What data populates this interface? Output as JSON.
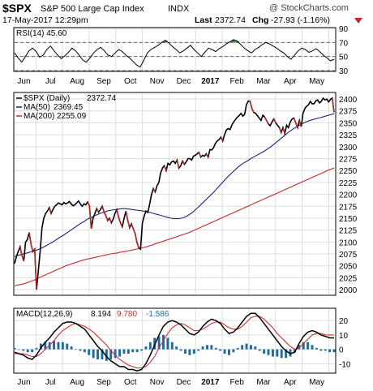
{
  "header": {
    "symbol": "$SPX",
    "name": "S&P 500 Large Cap Index",
    "exchange": "INDX",
    "watermark": "@ StockCharts.com",
    "datetime": "17-May-2017 12:29pm",
    "last_label": "Last",
    "last_value": "2372.74",
    "chg_label": "Chg",
    "chg_value": "-27.93 (-1.16%)"
  },
  "chart_data": [
    {
      "type": "line",
      "panel": "rsi",
      "legend": "RSI(14) 45.60",
      "ylim": [
        30,
        90
      ],
      "ticks": [
        30,
        50,
        70,
        90
      ],
      "reference_lines": [
        30,
        50,
        70
      ],
      "series": [
        {
          "name": "RSI(14)",
          "values": [
            55,
            48,
            42,
            50,
            58,
            62,
            57,
            49,
            52,
            60,
            65,
            58,
            52,
            47,
            51,
            56,
            62,
            58,
            52,
            45,
            42,
            48,
            55,
            60,
            63,
            58,
            52,
            50,
            55,
            60,
            57,
            52,
            48,
            43,
            38,
            35,
            45,
            55,
            60,
            63,
            66,
            70,
            73,
            69,
            64,
            60,
            55,
            58,
            62,
            66,
            60,
            55,
            50,
            56,
            62,
            60,
            57,
            61,
            64,
            68,
            71,
            74,
            72,
            67,
            62,
            58,
            55,
            60,
            63,
            67,
            70,
            68,
            65,
            62,
            58,
            55,
            50,
            46,
            52,
            58,
            62,
            60,
            56,
            58,
            61,
            57,
            52,
            48,
            44,
            46
          ]
        }
      ]
    },
    {
      "type": "line",
      "panel": "price",
      "ylim": [
        1990,
        2412
      ],
      "ticks": [
        2000,
        2025,
        2050,
        2075,
        2100,
        2125,
        2150,
        2175,
        2200,
        2225,
        2250,
        2275,
        2300,
        2325,
        2350,
        2375,
        2400
      ],
      "series": [
        {
          "name": "$SPX (Daily)",
          "legend_value": "2372.74",
          "color": "#000000",
          "values": [
            2055,
            2070,
            2080,
            2090,
            2072,
            2060,
            2100,
            2105,
            2120,
            2095,
            2080,
            2085,
            2000,
            2040,
            2080,
            2130,
            2150,
            2160,
            2165,
            2172,
            2160,
            2168,
            2175,
            2178,
            2182,
            2180,
            2178,
            2183,
            2180,
            2182,
            2185,
            2180,
            2176,
            2178,
            2182,
            2186,
            2180,
            2175,
            2180,
            2178,
            2184,
            2176,
            2128,
            2150,
            2160,
            2170,
            2162,
            2168,
            2175,
            2163,
            2155,
            2145,
            2150,
            2140,
            2148,
            2160,
            2168,
            2152,
            2140,
            2132,
            2150,
            2165,
            2145,
            2130,
            2138,
            2128,
            2118,
            2100,
            2088,
            2085,
            2140,
            2155,
            2165,
            2162,
            2180,
            2200,
            2212,
            2205,
            2218,
            2225,
            2245,
            2255,
            2260,
            2250,
            2265,
            2262,
            2268,
            2270,
            2265,
            2272,
            2255,
            2260,
            2270,
            2263,
            2268,
            2275,
            2275,
            2272,
            2280,
            2282,
            2285,
            2288,
            2278,
            2282,
            2280,
            2285,
            2278,
            2294,
            2293,
            2298,
            2307,
            2312,
            2315,
            2320,
            2312,
            2325,
            2335,
            2338,
            2336,
            2345,
            2352,
            2357,
            2362,
            2365,
            2370,
            2364,
            2368,
            2388,
            2396,
            2395,
            2380,
            2372,
            2370,
            2365,
            2360,
            2355,
            2366,
            2362,
            2355,
            2348,
            2344,
            2352,
            2358,
            2350,
            2345,
            2340,
            2330,
            2340,
            2328,
            2345,
            2340,
            2352,
            2358,
            2360,
            2350,
            2340,
            2355,
            2342,
            2370,
            2380,
            2385,
            2388,
            2395,
            2390,
            2390,
            2396,
            2398,
            2392,
            2395,
            2402,
            2398,
            2400,
            2394,
            2399,
            2402,
            2372
          ]
        },
        {
          "name": "MA(50)",
          "legend_value": "2369.45",
          "color": "#1a237e",
          "values": [
            2070,
            2072,
            2074,
            2076,
            2078,
            2080,
            2082,
            2085,
            2088,
            2092,
            2096,
            2100,
            2105,
            2110,
            2114,
            2119,
            2124,
            2129,
            2134,
            2139,
            2143,
            2148,
            2151,
            2155,
            2158,
            2161,
            2163,
            2166,
            2167,
            2168,
            2169,
            2170,
            2170,
            2169,
            2168,
            2167,
            2166,
            2165,
            2164,
            2162,
            2160,
            2158,
            2156,
            2154,
            2152,
            2150,
            2149,
            2149,
            2150,
            2152,
            2156,
            2161,
            2167,
            2174,
            2181,
            2188,
            2195,
            2202,
            2210,
            2218,
            2226,
            2234,
            2241,
            2248,
            2255,
            2261,
            2266,
            2270,
            2275,
            2279,
            2283,
            2287,
            2291,
            2296,
            2301,
            2307,
            2313,
            2319,
            2325,
            2331,
            2336,
            2341,
            2345,
            2349,
            2352,
            2355,
            2357,
            2359,
            2361,
            2363,
            2365,
            2367,
            2369
          ]
        },
        {
          "name": "MA(200)",
          "legend_value": "2255.09",
          "color": "#c62828",
          "values": [
            2008,
            2010,
            2012,
            2015,
            2018,
            2022,
            2026,
            2030,
            2034,
            2038,
            2042,
            2046,
            2050,
            2053,
            2056,
            2059,
            2062,
            2064,
            2066,
            2068,
            2070,
            2072,
            2074,
            2076,
            2077,
            2079,
            2080,
            2082,
            2084,
            2086,
            2088,
            2090,
            2093,
            2096,
            2099,
            2102,
            2105,
            2108,
            2111,
            2114,
            2117,
            2120,
            2124,
            2128,
            2132,
            2136,
            2140,
            2144,
            2148,
            2152,
            2156,
            2160,
            2164,
            2168,
            2172,
            2176,
            2180,
            2184,
            2188,
            2192,
            2196,
            2200,
            2204,
            2208,
            2212,
            2216,
            2220,
            2224,
            2228,
            2232,
            2236,
            2240,
            2244,
            2248,
            2252,
            2255
          ]
        }
      ]
    },
    {
      "type": "line",
      "panel": "macd",
      "legend": {
        "name": "MACD(12,26,9)",
        "macd": "8.194",
        "signal": "9.780",
        "hist": "-1.586"
      },
      "ylim": [
        -16,
        28
      ],
      "ticks": [
        -10,
        0,
        10,
        20
      ],
      "series": [
        {
          "name": "MACD",
          "color": "#000000",
          "values": [
            -2,
            -3,
            -4,
            -6,
            -7,
            -4,
            1,
            5,
            8,
            12,
            15,
            18,
            19,
            19,
            18,
            16,
            14,
            10,
            6,
            2,
            -1,
            -5,
            -8,
            -10,
            -12,
            -12,
            -14,
            -14,
            -15,
            -14,
            -10,
            -4,
            3,
            10,
            16,
            19,
            20,
            19,
            17,
            14,
            11,
            10,
            12,
            16,
            19,
            21,
            20,
            18,
            14,
            11,
            12,
            15,
            19,
            23,
            25,
            25,
            22,
            18,
            14,
            10,
            6,
            2,
            -1,
            -3,
            -2,
            4,
            9,
            12,
            13,
            12,
            10,
            9,
            8,
            8
          ]
        },
        {
          "name": "Signal",
          "color": "#d32f2f",
          "values": [
            -3,
            -3,
            -3,
            -4,
            -5,
            -5,
            -3,
            0,
            3,
            6,
            10,
            13,
            15,
            17,
            18,
            17,
            16,
            14,
            12,
            9,
            6,
            3,
            -1,
            -4,
            -7,
            -9,
            -11,
            -12,
            -13,
            -13,
            -12,
            -9,
            -5,
            1,
            6,
            11,
            15,
            17,
            18,
            17,
            15,
            13,
            13,
            14,
            16,
            18,
            19,
            19,
            17,
            15,
            14,
            14,
            16,
            19,
            22,
            23,
            23,
            21,
            18,
            15,
            11,
            8,
            5,
            2,
            0,
            1,
            4,
            7,
            10,
            11,
            11,
            10,
            10,
            10
          ]
        },
        {
          "name": "Histogram",
          "color": "#1e6b9e",
          "values": [
            1,
            0,
            -1,
            -2,
            -2,
            1,
            4,
            5,
            5,
            6,
            5,
            5,
            4,
            2,
            0,
            -1,
            -2,
            -4,
            -6,
            -7,
            -7,
            -8,
            -7,
            -6,
            -5,
            -3,
            -3,
            -2,
            -2,
            -1,
            2,
            5,
            8,
            9,
            10,
            8,
            5,
            2,
            -1,
            -3,
            -4,
            -3,
            -1,
            2,
            3,
            3,
            1,
            -1,
            -3,
            -4,
            -2,
            1,
            3,
            4,
            3,
            2,
            -1,
            -3,
            -4,
            -5,
            -5,
            -6,
            -6,
            -5,
            -2,
            3,
            5,
            5,
            3,
            1,
            -1,
            -1,
            -2,
            -2
          ]
        }
      ]
    }
  ],
  "x_axis": {
    "labels": [
      "Jun",
      "Jul",
      "Aug",
      "Sep",
      "Oct",
      "Nov",
      "Dec",
      "2017",
      "Feb",
      "Mar",
      "Apr",
      "May"
    ]
  },
  "colors": {
    "grid": "#dddddd",
    "rsi_fill": "#2e7d32",
    "down": "#c62828"
  }
}
